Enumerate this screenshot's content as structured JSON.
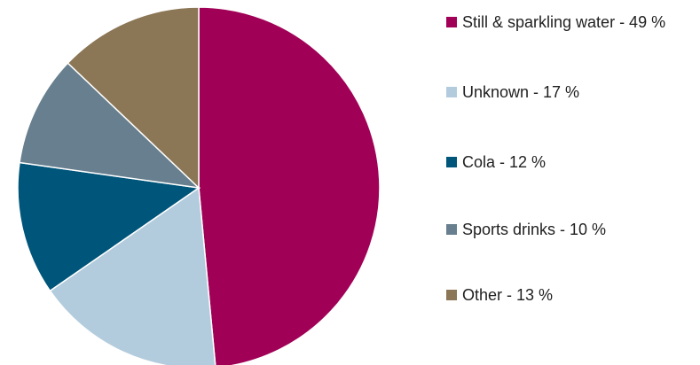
{
  "chart_data": {
    "type": "pie",
    "title": "",
    "categories": [
      "Still & sparkling water",
      "Unknown",
      "Cola",
      "Sports drinks",
      "Other"
    ],
    "values": [
      49,
      17,
      12,
      10,
      13
    ],
    "colors": [
      "#A10057",
      "#B3CCDD",
      "#00557A",
      "#677F8E",
      "#8B7655"
    ],
    "legend": {
      "placement": "right",
      "entries": [
        "Still & sparkling water - 49 %",
        "Unknown - 17 %",
        "Cola - 12 %",
        "Sports drinks - 10 %",
        "Other - 13 %"
      ]
    }
  }
}
